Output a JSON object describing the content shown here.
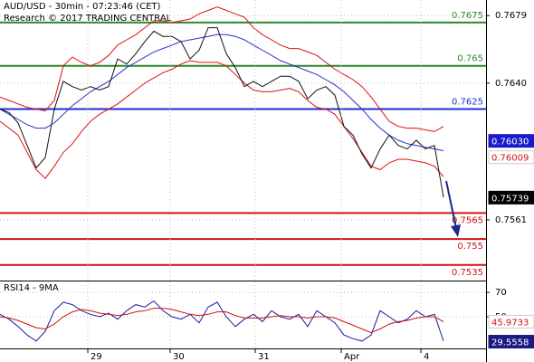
{
  "chart_data": [
    {
      "type": "line",
      "title": "AUD/USD - 30min - 07:23:46 (CET)",
      "subtitle": "Research © 2017 TRADING CENTRAL",
      "x": [
        0,
        1,
        2,
        3,
        4,
        5,
        6,
        7,
        8,
        9,
        10,
        11,
        12,
        13,
        14,
        15,
        16,
        17,
        18,
        19,
        20,
        21,
        22,
        23,
        24,
        25,
        26,
        27,
        28,
        29,
        30,
        31,
        32,
        33,
        34,
        35,
        36,
        37,
        38,
        39,
        40,
        41,
        42,
        43,
        44,
        45,
        46,
        47,
        48,
        49
      ],
      "xlim": [
        0,
        53.7
      ],
      "ylim": [
        0.7526,
        0.7688
      ],
      "yticks": [
        0.7679,
        {
          "value": 0.764,
          "label": "0.7640"
        },
        0.7561
      ],
      "grid": true,
      "series": [
        {
          "name": "upper-band",
          "color": "#dd1111",
          "values": [
            0.7632,
            0.763,
            0.7628,
            0.7626,
            0.7625,
            0.7624,
            0.763,
            0.765,
            0.7655,
            0.7652,
            0.765,
            0.7652,
            0.7656,
            0.7662,
            0.7665,
            0.7668,
            0.7672,
            0.7676,
            0.7676,
            0.7675,
            0.7676,
            0.7677,
            0.768,
            0.7682,
            0.7684,
            0.7682,
            0.768,
            0.7678,
            0.7672,
            0.7668,
            0.7665,
            0.7662,
            0.766,
            0.766,
            0.7658,
            0.7656,
            0.7652,
            0.7648,
            0.7645,
            0.7642,
            0.7638,
            0.7632,
            0.7625,
            0.7618,
            0.7615,
            0.7614,
            0.7614,
            0.7613,
            0.7612,
            0.7615
          ]
        },
        {
          "name": "lower-band",
          "color": "#dd1111",
          "values": [
            0.7618,
            0.7614,
            0.761,
            0.76,
            0.759,
            0.7585,
            0.7592,
            0.76,
            0.7605,
            0.7612,
            0.7618,
            0.7622,
            0.7625,
            0.7628,
            0.7632,
            0.7636,
            0.764,
            0.7643,
            0.7646,
            0.7648,
            0.7651,
            0.7653,
            0.7652,
            0.7652,
            0.7652,
            0.765,
            0.7645,
            0.764,
            0.7636,
            0.7635,
            0.7635,
            0.7636,
            0.7637,
            0.7635,
            0.763,
            0.7626,
            0.7625,
            0.7622,
            0.7615,
            0.7608,
            0.76,
            0.7592,
            0.759,
            0.7594,
            0.7596,
            0.7596,
            0.7595,
            0.7594,
            0.7592,
            0.7586
          ]
        },
        {
          "name": "moving-average",
          "color": "#2233cc",
          "values": [
            0.7625,
            0.7622,
            0.7619,
            0.7616,
            0.7614,
            0.7614,
            0.7617,
            0.7622,
            0.7627,
            0.7631,
            0.7635,
            0.7638,
            0.7641,
            0.7645,
            0.7649,
            0.7652,
            0.7655,
            0.7658,
            0.766,
            0.7662,
            0.7664,
            0.7665,
            0.7666,
            0.7667,
            0.7668,
            0.7668,
            0.7667,
            0.7665,
            0.7662,
            0.7659,
            0.7656,
            0.7653,
            0.7651,
            0.7649,
            0.7647,
            0.7645,
            0.7642,
            0.7639,
            0.7635,
            0.763,
            0.7625,
            0.7619,
            0.7614,
            0.761,
            0.7607,
            0.7605,
            0.7604,
            0.7603,
            0.7602,
            0.7601
          ]
        },
        {
          "name": "price",
          "color": "#111111",
          "values": [
            0.7625,
            0.7623,
            0.7617,
            0.7604,
            0.7591,
            0.7597,
            0.7625,
            0.7641,
            0.7638,
            0.7636,
            0.7638,
            0.7636,
            0.7638,
            0.7654,
            0.7651,
            0.7657,
            0.7664,
            0.767,
            0.7667,
            0.7667,
            0.7664,
            0.7654,
            0.7659,
            0.7672,
            0.7672,
            0.7657,
            0.7649,
            0.7638,
            0.7641,
            0.7638,
            0.7641,
            0.7644,
            0.7644,
            0.7641,
            0.7631,
            0.7636,
            0.7638,
            0.7633,
            0.7615,
            0.761,
            0.7599,
            0.7591,
            0.7602,
            0.761,
            0.7604,
            0.7602,
            0.7607,
            0.7602,
            0.7604,
            0.7574
          ]
        }
      ],
      "levels": [
        {
          "value": 0.7675,
          "color": "#2a8a2a"
        },
        {
          "value": 0.765,
          "color": "#2a8a2a"
        },
        {
          "value": 0.7625,
          "color": "#1f2fd0"
        },
        {
          "value": 0.7565,
          "color": "#d01515"
        },
        {
          "value": 0.755,
          "color": "#d01515"
        },
        {
          "value": 0.7535,
          "color": "#d01515"
        }
      ],
      "price_tags": [
        {
          "value": 0.7603,
          "label": "0.76030",
          "background": "#1a1acc",
          "color": "#ffffff"
        },
        {
          "value": 0.76009,
          "label": "0.76009",
          "background": "#ffffff",
          "color": "#d01515"
        },
        {
          "value": 0.75739,
          "label": "0.75739",
          "background": "#000000",
          "color": "#ffffff"
        }
      ]
    },
    {
      "type": "line",
      "title": "RSI14 - 9MA",
      "x": [
        0,
        1,
        2,
        3,
        4,
        5,
        6,
        7,
        8,
        9,
        10,
        11,
        12,
        13,
        14,
        15,
        16,
        17,
        18,
        19,
        20,
        21,
        22,
        23,
        24,
        25,
        26,
        27,
        28,
        29,
        30,
        31,
        32,
        33,
        34,
        35,
        36,
        37,
        38,
        39,
        40,
        41,
        42,
        43,
        44,
        45,
        46,
        47,
        48,
        49
      ],
      "xlim": [
        0,
        53.7
      ],
      "xticks": [
        {
          "value": 9.7,
          "label": "29"
        },
        {
          "value": 18.8,
          "label": "30"
        },
        {
          "value": 28.2,
          "label": "31"
        },
        {
          "value": 37.7,
          "label": "Apr"
        },
        {
          "value": 46.5,
          "label": "4"
        }
      ],
      "ylim": [
        24,
        79
      ],
      "yticks": [
        70,
        50
      ],
      "grid": true,
      "series": [
        {
          "name": "rsi",
          "color": "#1a1aa0",
          "values": [
            52,
            48,
            42,
            35,
            30,
            38,
            55,
            62,
            60,
            55,
            52,
            50,
            53,
            48,
            55,
            60,
            58,
            63,
            55,
            50,
            48,
            52,
            45,
            58,
            62,
            50,
            42,
            48,
            52,
            46,
            55,
            50,
            48,
            52,
            42,
            55,
            50,
            45,
            35,
            32,
            30,
            35,
            55,
            50,
            45,
            48,
            55,
            50,
            52,
            30
          ]
        },
        {
          "name": "rsi-ma",
          "color": "#d01010",
          "values": [
            50,
            49,
            47,
            44,
            41,
            40,
            44,
            50,
            54,
            56,
            55,
            53,
            52,
            51,
            52,
            54,
            55,
            57,
            57,
            56,
            54,
            52,
            51,
            52,
            54,
            54,
            51,
            49,
            49,
            49,
            50,
            51,
            50,
            50,
            49,
            50,
            50,
            49,
            46,
            43,
            40,
            37,
            40,
            44,
            46,
            47,
            49,
            50,
            50,
            46
          ]
        }
      ],
      "price_tags": [
        {
          "value": 45.9733,
          "background": "#ffffff",
          "color": "#d01515"
        },
        {
          "value": 29.5558,
          "background": "#1a1a80",
          "color": "#ffffff"
        }
      ]
    }
  ]
}
